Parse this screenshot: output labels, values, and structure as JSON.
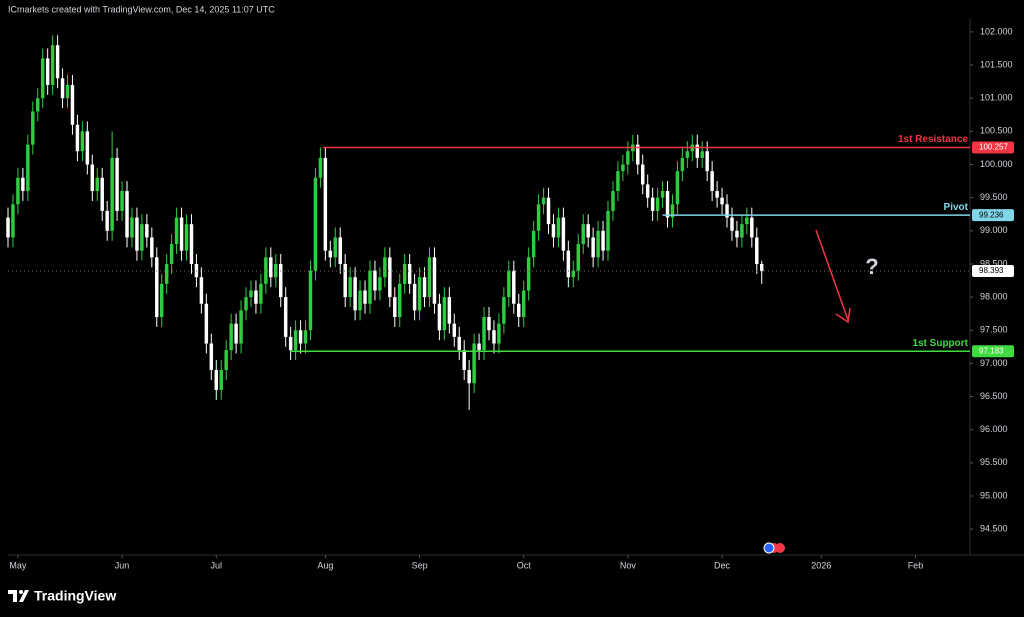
{
  "header": "ICmarkets created with TradingView.com, Dec 14, 2025 11:07 UTC",
  "brand": "TradingView",
  "annotation": "?",
  "chart_data": {
    "type": "candlestick",
    "up_color": "#2ecc40",
    "down_color": "#ffffff",
    "xlim": [
      0,
      194
    ],
    "ylim": [
      94.11,
      102.21
    ],
    "xticks": [
      {
        "value": 2,
        "label": "May"
      },
      {
        "value": 23,
        "label": "Jun"
      },
      {
        "value": 42,
        "label": "Jul"
      },
      {
        "value": 64,
        "label": "Aug"
      },
      {
        "value": 83,
        "label": "Sep"
      },
      {
        "value": 104,
        "label": "Oct"
      },
      {
        "value": 125,
        "label": "Nov"
      },
      {
        "value": 144,
        "label": "Dec"
      },
      {
        "value": 164,
        "label": "2026"
      },
      {
        "value": 183,
        "label": "Feb"
      }
    ],
    "yticks": [
      {
        "value": 94.5,
        "label": "94.500"
      },
      {
        "value": 95,
        "label": "95.000"
      },
      {
        "value": 95.5,
        "label": "95.500"
      },
      {
        "value": 96,
        "label": "96.000"
      },
      {
        "value": 96.5,
        "label": "96.500"
      },
      {
        "value": 97,
        "label": "97.000"
      },
      {
        "value": 97.5,
        "label": "97.500"
      },
      {
        "value": 98,
        "label": "98.000"
      },
      {
        "value": 98.5,
        "label": "98.500"
      },
      {
        "value": 99,
        "label": "99.000"
      },
      {
        "value": 99.5,
        "label": "99.500"
      },
      {
        "value": 100,
        "label": "100.000"
      },
      {
        "value": 100.5,
        "label": "100.500"
      },
      {
        "value": 101,
        "label": "101.000"
      },
      {
        "value": 101.5,
        "label": "101.500"
      },
      {
        "value": 102,
        "label": "102.000"
      }
    ],
    "levels": [
      {
        "label": "1st Resistance",
        "value": 100.257,
        "color": "#f23645",
        "start": 63.5
      },
      {
        "label": "Pivot",
        "value": 99.236,
        "color": "#7fd6e8",
        "start": 132
      },
      {
        "label": "1st Support",
        "value": 97.183,
        "color": "#3fdc3f",
        "start": 57
      }
    ],
    "x": [
      0,
      1,
      2,
      3,
      4,
      5,
      6,
      7,
      8,
      9,
      10,
      11,
      12,
      13,
      14,
      15,
      16,
      17,
      18,
      19,
      20,
      21,
      22,
      23,
      24,
      25,
      26,
      27,
      28,
      29,
      30,
      31,
      32,
      33,
      34,
      35,
      36,
      37,
      38,
      39,
      40,
      41,
      42,
      43,
      44,
      45,
      46,
      47,
      48,
      49,
      50,
      51,
      52,
      53,
      54,
      55,
      56,
      57,
      58,
      59,
      60,
      61,
      62,
      63,
      64,
      65,
      66,
      67,
      68,
      69,
      70,
      71,
      72,
      73,
      74,
      75,
      76,
      77,
      78,
      79,
      80,
      81,
      82,
      83,
      84,
      85,
      86,
      87,
      88,
      89,
      90,
      91,
      92,
      93,
      94,
      95,
      96,
      97,
      98,
      99,
      100,
      101,
      102,
      103,
      104,
      105,
      106,
      107,
      108,
      109,
      110,
      111,
      112,
      113,
      114,
      115,
      116,
      117,
      118,
      119,
      120,
      121,
      122,
      123,
      124,
      125,
      126,
      127,
      128,
      129,
      130,
      131,
      132,
      133,
      134,
      135,
      136,
      137,
      138,
      139,
      140,
      141,
      142,
      143,
      144,
      145,
      146,
      147,
      148,
      149,
      150,
      151,
      152
    ],
    "candles": [
      [
        99.2,
        99.35,
        98.75,
        98.9
      ],
      [
        98.9,
        99.55,
        98.75,
        99.4
      ],
      [
        99.4,
        99.95,
        99.25,
        99.8
      ],
      [
        99.8,
        99.95,
        99.45,
        99.6
      ],
      [
        99.6,
        100.45,
        99.45,
        100.3
      ],
      [
        100.3,
        100.95,
        100.15,
        100.8
      ],
      [
        100.8,
        101.15,
        100.65,
        101.0
      ],
      [
        101.0,
        101.75,
        100.85,
        101.6
      ],
      [
        101.6,
        101.75,
        101.05,
        101.2
      ],
      [
        101.2,
        101.95,
        101.05,
        101.8
      ],
      [
        101.8,
        101.95,
        101.15,
        101.3
      ],
      [
        101.3,
        101.45,
        100.85,
        101.0
      ],
      [
        101.0,
        101.35,
        100.85,
        101.2
      ],
      [
        101.2,
        101.35,
        100.45,
        100.6
      ],
      [
        100.6,
        100.75,
        100.05,
        100.2
      ],
      [
        100.2,
        100.65,
        100.05,
        100.5
      ],
      [
        100.5,
        100.65,
        99.85,
        100.0
      ],
      [
        100.0,
        100.15,
        99.45,
        99.6
      ],
      [
        99.6,
        99.95,
        99.45,
        99.8
      ],
      [
        99.8,
        99.95,
        99.15,
        99.3
      ],
      [
        99.3,
        99.45,
        98.85,
        99.0
      ],
      [
        99.0,
        100.5,
        98.85,
        100.1
      ],
      [
        100.1,
        100.25,
        99.15,
        99.3
      ],
      [
        99.3,
        99.75,
        99.15,
        99.6
      ],
      [
        99.6,
        99.75,
        98.75,
        98.9
      ],
      [
        98.9,
        99.35,
        98.75,
        99.2
      ],
      [
        99.2,
        99.35,
        98.55,
        98.7
      ],
      [
        98.7,
        99.25,
        98.55,
        99.1
      ],
      [
        99.1,
        99.25,
        98.75,
        98.9
      ],
      [
        98.9,
        99.05,
        98.45,
        98.6
      ],
      [
        98.6,
        98.75,
        97.55,
        97.7
      ],
      [
        97.7,
        98.35,
        97.55,
        98.2
      ],
      [
        98.2,
        98.65,
        98.05,
        98.5
      ],
      [
        98.5,
        98.95,
        98.35,
        98.8
      ],
      [
        98.8,
        99.35,
        98.65,
        99.2
      ],
      [
        99.2,
        99.35,
        98.55,
        98.7
      ],
      [
        98.7,
        99.25,
        98.55,
        99.1
      ],
      [
        99.1,
        99.25,
        98.35,
        98.5
      ],
      [
        98.5,
        98.65,
        98.15,
        98.3
      ],
      [
        98.3,
        98.45,
        97.75,
        97.9
      ],
      [
        97.9,
        98.05,
        97.15,
        97.3
      ],
      [
        97.3,
        97.45,
        96.75,
        96.9
      ],
      [
        96.9,
        97.05,
        96.45,
        96.6
      ],
      [
        96.6,
        97.05,
        96.45,
        96.9
      ],
      [
        96.9,
        97.35,
        96.75,
        97.2
      ],
      [
        97.2,
        97.75,
        97.05,
        97.6
      ],
      [
        97.6,
        97.75,
        97.15,
        97.3
      ],
      [
        97.3,
        97.95,
        97.15,
        97.8
      ],
      [
        97.8,
        98.15,
        97.65,
        98.0
      ],
      [
        98.0,
        98.25,
        97.85,
        98.1
      ],
      [
        98.1,
        98.25,
        97.75,
        97.9
      ],
      [
        97.9,
        98.35,
        97.75,
        98.2
      ],
      [
        98.2,
        98.75,
        98.05,
        98.6
      ],
      [
        98.6,
        98.75,
        98.15,
        98.3
      ],
      [
        98.3,
        98.65,
        98.15,
        98.5
      ],
      [
        98.5,
        98.65,
        97.85,
        98.0
      ],
      [
        98.0,
        98.15,
        97.25,
        97.4
      ],
      [
        97.4,
        97.55,
        97.05,
        97.2
      ],
      [
        97.2,
        97.65,
        97.05,
        97.5
      ],
      [
        97.5,
        97.65,
        97.15,
        97.3
      ],
      [
        97.3,
        97.65,
        97.15,
        97.5
      ],
      [
        97.5,
        98.55,
        97.35,
        98.4
      ],
      [
        98.4,
        99.95,
        98.25,
        99.8
      ],
      [
        99.8,
        100.26,
        99.65,
        100.1
      ],
      [
        100.1,
        100.25,
        98.55,
        98.7
      ],
      [
        98.7,
        98.85,
        98.45,
        98.6
      ],
      [
        98.6,
        99.05,
        98.45,
        98.9
      ],
      [
        98.9,
        99.05,
        98.35,
        98.5
      ],
      [
        98.5,
        98.65,
        97.85,
        98.0
      ],
      [
        98.0,
        98.45,
        97.85,
        98.3
      ],
      [
        98.3,
        98.45,
        97.65,
        97.8
      ],
      [
        97.8,
        98.25,
        97.65,
        98.1
      ],
      [
        98.1,
        98.25,
        97.75,
        97.9
      ],
      [
        97.9,
        98.55,
        97.75,
        98.4
      ],
      [
        98.4,
        98.55,
        97.95,
        98.1
      ],
      [
        98.1,
        98.45,
        97.95,
        98.3
      ],
      [
        98.3,
        98.75,
        98.15,
        98.6
      ],
      [
        98.6,
        98.75,
        97.85,
        98.0
      ],
      [
        98.0,
        98.15,
        97.55,
        97.7
      ],
      [
        97.7,
        98.35,
        97.55,
        98.2
      ],
      [
        98.2,
        98.65,
        98.05,
        98.5
      ],
      [
        98.5,
        98.65,
        98.05,
        98.2
      ],
      [
        98.2,
        98.35,
        97.65,
        97.8
      ],
      [
        97.8,
        98.45,
        97.65,
        98.3
      ],
      [
        98.3,
        98.45,
        97.85,
        98.0
      ],
      [
        98.0,
        98.75,
        97.85,
        98.6
      ],
      [
        98.6,
        98.75,
        97.75,
        97.9
      ],
      [
        97.9,
        98.05,
        97.35,
        97.5
      ],
      [
        97.5,
        98.15,
        97.35,
        98.0
      ],
      [
        98.0,
        98.15,
        97.45,
        97.6
      ],
      [
        97.6,
        97.75,
        97.25,
        97.4
      ],
      [
        97.4,
        97.55,
        97.05,
        97.2
      ],
      [
        97.2,
        97.35,
        96.75,
        96.9
      ],
      [
        96.9,
        97.05,
        96.3,
        96.7
      ],
      [
        96.7,
        97.45,
        96.55,
        97.3
      ],
      [
        97.3,
        97.45,
        97.05,
        97.2
      ],
      [
        97.2,
        97.85,
        97.05,
        97.7
      ],
      [
        97.7,
        97.85,
        97.35,
        97.5
      ],
      [
        97.5,
        97.65,
        97.15,
        97.3
      ],
      [
        97.3,
        97.75,
        97.15,
        97.6
      ],
      [
        97.6,
        98.15,
        97.45,
        98.0
      ],
      [
        98.0,
        98.55,
        97.85,
        98.4
      ],
      [
        98.4,
        98.55,
        97.75,
        97.9
      ],
      [
        97.9,
        98.05,
        97.55,
        97.7
      ],
      [
        97.7,
        98.25,
        97.55,
        98.1
      ],
      [
        98.1,
        98.75,
        97.95,
        98.6
      ],
      [
        98.6,
        99.15,
        98.45,
        99.0
      ],
      [
        99.0,
        99.55,
        98.85,
        99.4
      ],
      [
        99.4,
        99.65,
        99.25,
        99.5
      ],
      [
        99.5,
        99.65,
        98.95,
        99.1
      ],
      [
        99.1,
        99.25,
        98.75,
        98.9
      ],
      [
        98.9,
        99.35,
        98.75,
        99.2
      ],
      [
        99.2,
        99.35,
        98.55,
        98.7
      ],
      [
        98.7,
        98.85,
        98.15,
        98.3
      ],
      [
        98.3,
        98.55,
        98.15,
        98.4
      ],
      [
        98.4,
        98.95,
        98.25,
        98.8
      ],
      [
        98.8,
        99.25,
        98.65,
        99.1
      ],
      [
        99.1,
        99.25,
        98.75,
        98.9
      ],
      [
        98.9,
        99.05,
        98.45,
        98.6
      ],
      [
        98.6,
        99.15,
        98.45,
        99.0
      ],
      [
        99.0,
        99.15,
        98.55,
        98.7
      ],
      [
        98.7,
        99.45,
        98.55,
        99.3
      ],
      [
        99.3,
        99.75,
        99.15,
        99.6
      ],
      [
        99.6,
        100.05,
        99.45,
        99.9
      ],
      [
        99.9,
        100.15,
        99.75,
        100.0
      ],
      [
        100.0,
        100.35,
        99.85,
        100.2
      ],
      [
        100.2,
        100.45,
        100.05,
        100.3
      ],
      [
        100.3,
        100.45,
        99.85,
        100.0
      ],
      [
        100.0,
        100.15,
        99.55,
        99.7
      ],
      [
        99.7,
        99.85,
        99.35,
        99.5
      ],
      [
        99.5,
        99.65,
        99.15,
        99.3
      ],
      [
        99.3,
        99.65,
        99.15,
        99.5
      ],
      [
        99.5,
        99.75,
        99.35,
        99.6
      ],
      [
        99.6,
        99.75,
        99.05,
        99.2
      ],
      [
        99.2,
        99.55,
        99.05,
        99.4
      ],
      [
        99.4,
        100.05,
        99.25,
        99.9
      ],
      [
        99.9,
        100.25,
        99.75,
        100.1
      ],
      [
        100.1,
        100.35,
        99.95,
        100.2
      ],
      [
        100.2,
        100.45,
        100.05,
        100.3
      ],
      [
        100.3,
        100.45,
        99.95,
        100.1
      ],
      [
        100.1,
        100.35,
        99.95,
        100.2
      ],
      [
        100.2,
        100.35,
        99.75,
        99.9
      ],
      [
        99.9,
        100.05,
        99.45,
        99.6
      ],
      [
        99.6,
        99.75,
        99.35,
        99.5
      ],
      [
        99.5,
        99.65,
        99.25,
        99.4
      ],
      [
        99.4,
        99.55,
        99.05,
        99.2
      ],
      [
        99.2,
        99.35,
        98.85,
        99.0
      ],
      [
        99.0,
        99.15,
        98.75,
        98.9
      ],
      [
        98.9,
        99.25,
        98.75,
        99.1
      ],
      [
        99.1,
        99.35,
        98.95,
        99.2
      ],
      [
        99.2,
        99.35,
        98.75,
        98.9
      ],
      [
        98.9,
        99.05,
        98.35,
        98.5
      ],
      [
        98.5,
        98.55,
        98.2,
        98.393
      ]
    ]
  }
}
